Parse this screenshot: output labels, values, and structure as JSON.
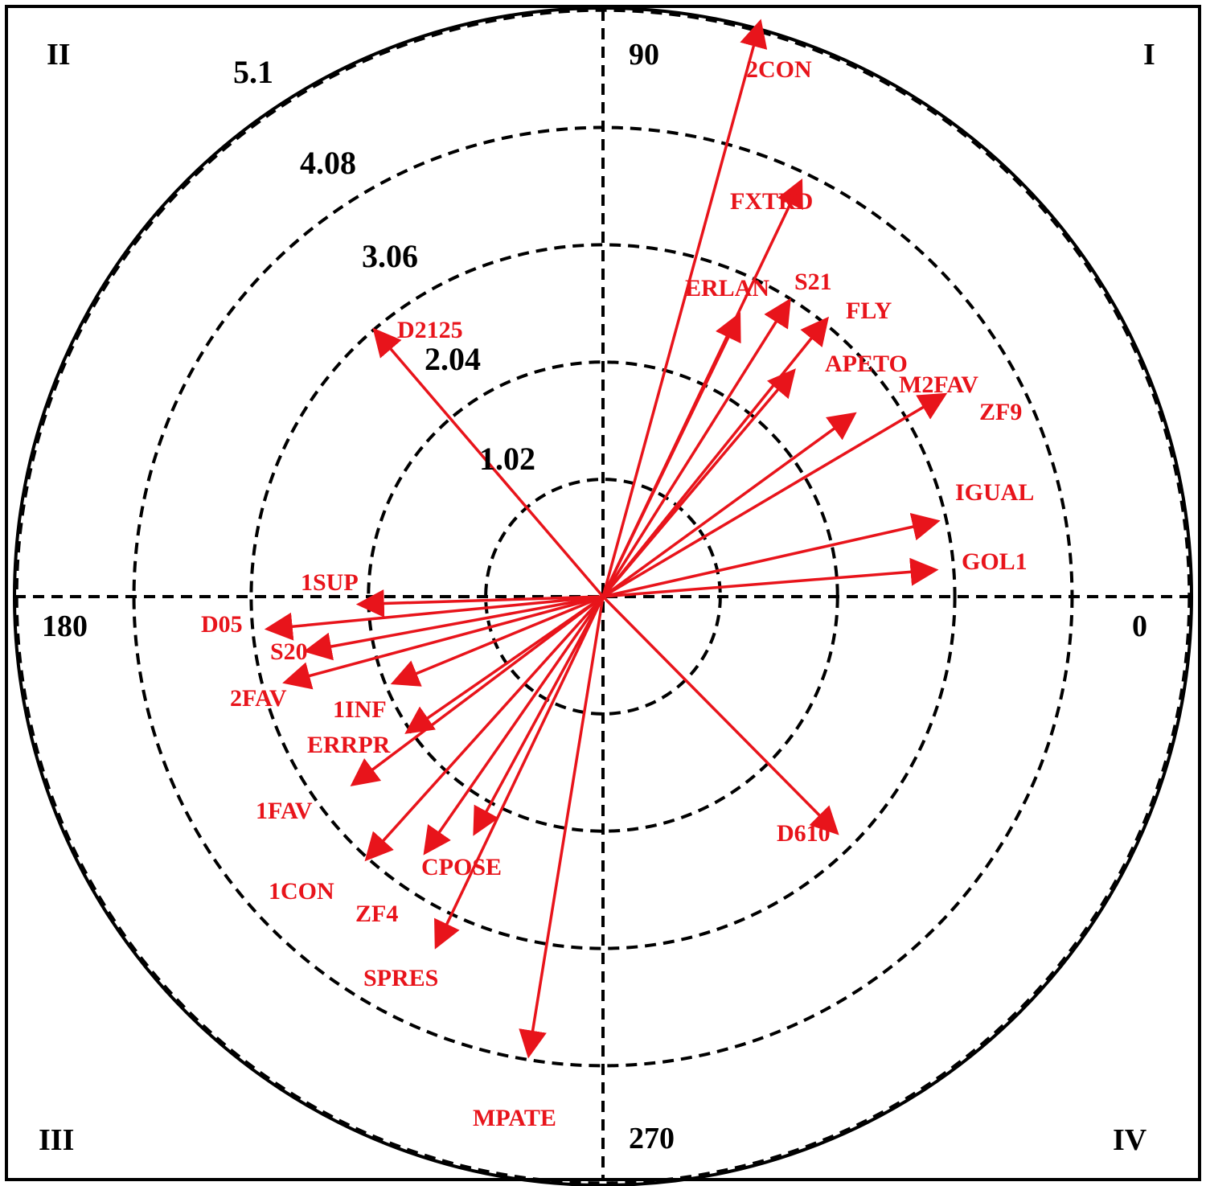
{
  "chart_data": {
    "type": "polar-vector",
    "title": "",
    "radial_max": 5.1,
    "radial_rings": [
      1.02,
      2.04,
      3.06,
      4.08,
      5.1
    ],
    "radial_tick_labels": [
      "1.02",
      "2.04",
      "3.06",
      "4.08",
      "5.1"
    ],
    "angle_labels": [
      "0",
      "90",
      "180",
      "270"
    ],
    "quadrant_labels": [
      "I",
      "II",
      "III",
      "IV"
    ],
    "vector_color": "#e8141b",
    "vectors": [
      {
        "label": "2CON",
        "radius": 5.16,
        "angle": 74.7
      },
      {
        "label": "FXTRD",
        "radius": 3.98,
        "angle": 64.5
      },
      {
        "label": "ERLAN",
        "radius": 2.7,
        "angle": 64.2
      },
      {
        "label": "S21",
        "radius": 3.02,
        "angle": 57.8
      },
      {
        "label": "FLY",
        "radius": 3.08,
        "angle": 51.1
      },
      {
        "label": "APETO",
        "radius": 2.55,
        "angle": 49.8
      },
      {
        "label": "M2FAV",
        "radius": 2.68,
        "angle": 36.0
      },
      {
        "label": "ZF9",
        "radius": 3.43,
        "angle": 30.6
      },
      {
        "label": "IGUAL",
        "radius": 2.96,
        "angle": 12.7
      },
      {
        "label": "GOL1",
        "radius": 2.88,
        "angle": 4.6
      },
      {
        "label": "D610",
        "radius": 2.87,
        "angle": -45.3
      },
      {
        "label": "MPATE",
        "radius": 4.02,
        "angle": -99.2
      },
      {
        "label": "SPRES",
        "radius": 3.35,
        "angle": -115.5
      },
      {
        "label": "ZF4",
        "radius": 2.69,
        "angle": -124.8
      },
      {
        "label": "CPOSE",
        "radius": 2.32,
        "angle": -118.5
      },
      {
        "label": "1CON",
        "radius": 3.05,
        "angle": -132.0
      },
      {
        "label": "1FAV",
        "radius": 2.7,
        "angle": -143.1
      },
      {
        "label": "ERRPR",
        "radius": 2.05,
        "angle": -145.3
      },
      {
        "label": "1INF",
        "radius": 1.95,
        "angle": -157.6
      },
      {
        "label": "2FAV",
        "radius": 2.84,
        "angle": -164.9
      },
      {
        "label": "S20",
        "radius": 2.6,
        "angle": -169.6
      },
      {
        "label": "D05",
        "radius": 2.91,
        "angle": -174.5
      },
      {
        "label": "1SUP",
        "radius": 2.1,
        "angle": -178.2
      },
      {
        "label": "D2125",
        "radius": 3.03,
        "angle": 130.6
      }
    ]
  }
}
